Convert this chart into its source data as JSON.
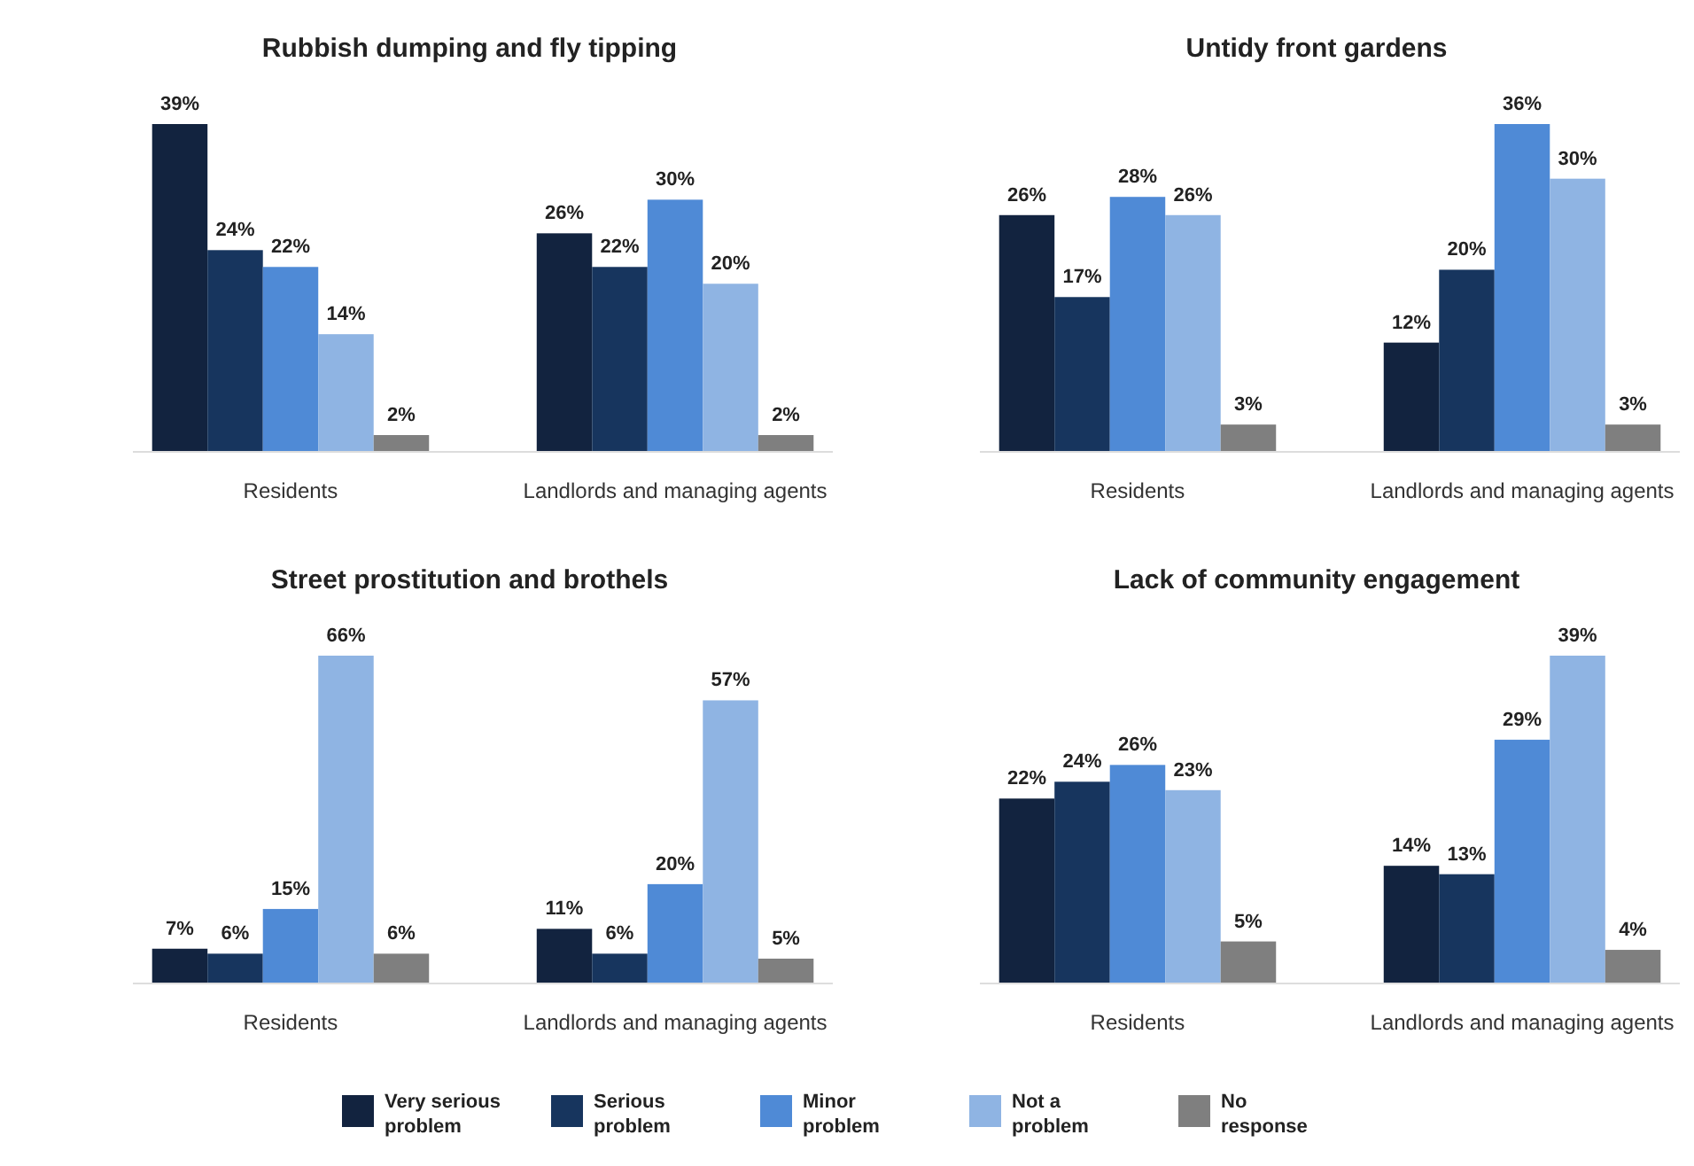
{
  "chart_data": [
    {
      "type": "bar",
      "title": "Rubbish dumping and fly tipping",
      "categories": [
        "Residents",
        "Landlords and managing agents"
      ],
      "legend": false,
      "series": [
        {
          "color": "#12233f",
          "values": [
            39,
            26
          ],
          "value_labels": [
            "39%",
            "26%"
          ]
        },
        {
          "color": "#17355e",
          "values": [
            24,
            22
          ],
          "value_labels": [
            "24%",
            "22%"
          ]
        },
        {
          "color": "#4f8ad6",
          "values": [
            22,
            30
          ],
          "value_labels": [
            "22%",
            "30%"
          ]
        },
        {
          "color": "#8fb4e3",
          "values": [
            14,
            20
          ],
          "value_labels": [
            "14%",
            "20%"
          ]
        },
        {
          "color": "#7f7f7f",
          "values": [
            2,
            2
          ],
          "value_labels": [
            "2%",
            "2%"
          ]
        }
      ]
    },
    {
      "type": "bar",
      "title": "Untidy front gardens",
      "categories": [
        "Residents",
        "Landlords and managing agents"
      ],
      "legend": false,
      "series": [
        {
          "color": "#12233f",
          "values": [
            26,
            12
          ],
          "value_labels": [
            "26%",
            "12%"
          ]
        },
        {
          "color": "#17355e",
          "values": [
            17,
            20
          ],
          "value_labels": [
            "17%",
            "20%"
          ]
        },
        {
          "color": "#4f8ad6",
          "values": [
            28,
            36
          ],
          "value_labels": [
            "28%",
            "36%"
          ]
        },
        {
          "color": "#8fb4e3",
          "values": [
            26,
            30
          ],
          "value_labels": [
            "26%",
            "30%"
          ]
        },
        {
          "color": "#7f7f7f",
          "values": [
            3,
            3
          ],
          "value_labels": [
            "3%",
            "3%"
          ]
        }
      ]
    },
    {
      "type": "bar",
      "title": "Street prostitution and brothels",
      "categories": [
        "Residents",
        "Landlords and managing agents"
      ],
      "legend": false,
      "series": [
        {
          "color": "#12233f",
          "values": [
            7,
            11
          ],
          "value_labels": [
            "7%",
            "11%"
          ]
        },
        {
          "color": "#17355e",
          "values": [
            6,
            6
          ],
          "value_labels": [
            "6%",
            "6%"
          ]
        },
        {
          "color": "#4f8ad6",
          "values": [
            15,
            20
          ],
          "value_labels": [
            "15%",
            "20%"
          ]
        },
        {
          "color": "#8fb4e3",
          "values": [
            66,
            57
          ],
          "value_labels": [
            "66%",
            "57%"
          ]
        },
        {
          "color": "#7f7f7f",
          "values": [
            6,
            5
          ],
          "value_labels": [
            "6%",
            "5%"
          ]
        }
      ]
    },
    {
      "type": "bar",
      "title": "Lack of community engagement",
      "categories": [
        "Residents",
        "Landlords and managing agents"
      ],
      "legend": "bottom",
      "series": [
        {
          "name": "Very serious problem",
          "color": "#12233f",
          "values": [
            22,
            14
          ],
          "value_labels": [
            "22%",
            "14%"
          ]
        },
        {
          "name": "Serious problem",
          "color": "#17355e",
          "values": [
            24,
            13
          ],
          "value_labels": [
            "24%",
            "13%"
          ]
        },
        {
          "name": "Minor problem",
          "color": "#4f8ad6",
          "values": [
            26,
            29
          ],
          "value_labels": [
            "26%",
            "29%"
          ]
        },
        {
          "name": "Not a problem",
          "color": "#8fb4e3",
          "values": [
            23,
            39
          ],
          "value_labels": [
            "23%",
            "39%"
          ]
        },
        {
          "name": "No response",
          "color": "#7f7f7f",
          "values": [
            5,
            4
          ],
          "value_labels": [
            "5%",
            "4%"
          ]
        }
      ]
    }
  ]
}
